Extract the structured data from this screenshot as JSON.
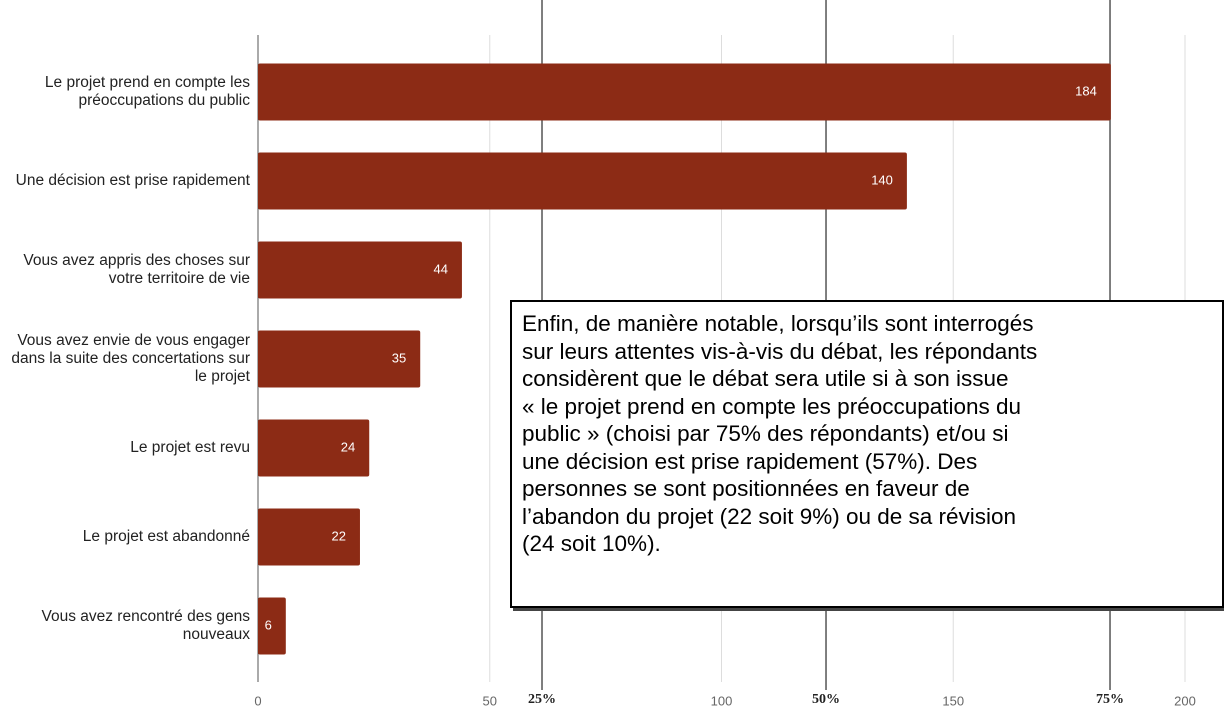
{
  "chart_data": {
    "type": "bar",
    "orientation": "horizontal",
    "categories": [
      "Le projet prend en compte les préoccupations du public",
      "Une décision est prise rapidement",
      "Vous avez appris des choses sur votre territoire de vie",
      "Vous avez envie de vous engager dans la suite des concertations sur le projet",
      "Le projet est revu",
      "Le projet est abandonné",
      "Vous avez rencontré des gens nouveaux"
    ],
    "values": [
      184,
      140,
      44,
      35,
      24,
      22,
      6
    ],
    "color": "#8c2b15",
    "xlim": [
      0,
      200
    ],
    "xticks": [
      0,
      50,
      100,
      150,
      200
    ],
    "grid": true,
    "x2lim": [
      0,
      81.6
    ],
    "x2ticks": [
      {
        "value": 25,
        "label": "25%"
      },
      {
        "value": 50,
        "label": "50%"
      },
      {
        "value": 75,
        "label": "75%"
      }
    ],
    "annotation": [
      "Enfin, de manière notable, lorsqu’ils sont interrogés",
      "sur leurs attentes vis-à-vis du débat, les répondants",
      "considèrent que le débat sera utile si à son issue",
      "« le projet prend en compte les préoccupations du",
      "public » (choisi par 75% des répondants) et/ou si",
      "une décision est prise rapidement (57%). Des",
      "personnes se sont positionnées en faveur de",
      "l’abandon du projet (22 soit 9%) ou de sa révision",
      "(24 soit 10%)."
    ]
  }
}
